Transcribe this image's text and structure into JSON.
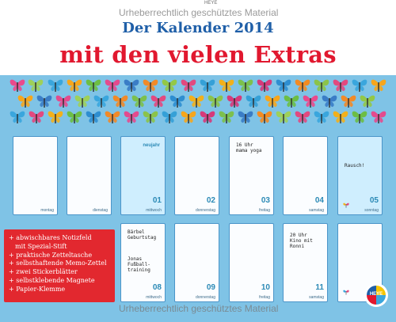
{
  "watermark": "Urheberrechtlich geschütztes Material",
  "brand_small": "HEYE",
  "title": {
    "line1": "Der Kalender 2014",
    "line2": "mit den vielen Extras"
  },
  "colors": {
    "panel": "#7fc3e6",
    "title_blue": "#1f5fa8",
    "title_red": "#e1182f",
    "card_border": "#4b95c9",
    "today_fill": "#cfeefe",
    "feature_box": "#e2282f"
  },
  "calendar": {
    "row1": [
      {
        "num": "",
        "day": "montag",
        "note": "",
        "special": "",
        "today": false
      },
      {
        "num": "",
        "day": "dienstag",
        "note": "",
        "special": "",
        "today": false
      },
      {
        "num": "01",
        "day": "mittwoch",
        "note": "",
        "special": "neujahr",
        "today": true
      },
      {
        "num": "02",
        "day": "donnerstag",
        "note": "",
        "special": "",
        "today": false
      },
      {
        "num": "03",
        "day": "freitag",
        "note": "16 Uhr\nmama yoga",
        "special": "",
        "today": false
      },
      {
        "num": "04",
        "day": "samstag",
        "note": "",
        "special": "",
        "today": false
      },
      {
        "num": "05",
        "day": "sonntag",
        "note": "Rausch!",
        "special": "",
        "today": true
      }
    ],
    "row2": [
      {
        "num": "08",
        "day": "mittwoch",
        "note": "Bärbel\nGeburtstag\n\n\n\nJonas\nFußball-\ntraining",
        "special": "",
        "today": false
      },
      {
        "num": "09",
        "day": "donnerstag",
        "note": "",
        "special": "",
        "today": false
      },
      {
        "num": "10",
        "day": "freitag",
        "note": "",
        "special": "",
        "today": false
      },
      {
        "num": "11",
        "day": "samstag",
        "note": "20 Uhr\nKino mit\nRonni",
        "special": "",
        "today": false
      },
      {
        "num": "",
        "day": "",
        "note": "",
        "special": "",
        "today": false
      }
    ]
  },
  "features": [
    {
      "text": "+ abwischbares Notizfeld",
      "sub": "mit Spezial-Stift"
    },
    {
      "text": "+ praktische Zetteltasche",
      "sub": ""
    },
    {
      "text": "+ selbsthaftende Memo-Zettel",
      "sub": ""
    },
    {
      "text": "+ zwei Stickerblätter",
      "sub": ""
    },
    {
      "text": "+ selbstklebende Magnete",
      "sub": ""
    },
    {
      "text": "+ Papier-Klemme",
      "sub": ""
    }
  ],
  "logo_text": "HEYE",
  "butterfly_icon": "butterfly-icon"
}
